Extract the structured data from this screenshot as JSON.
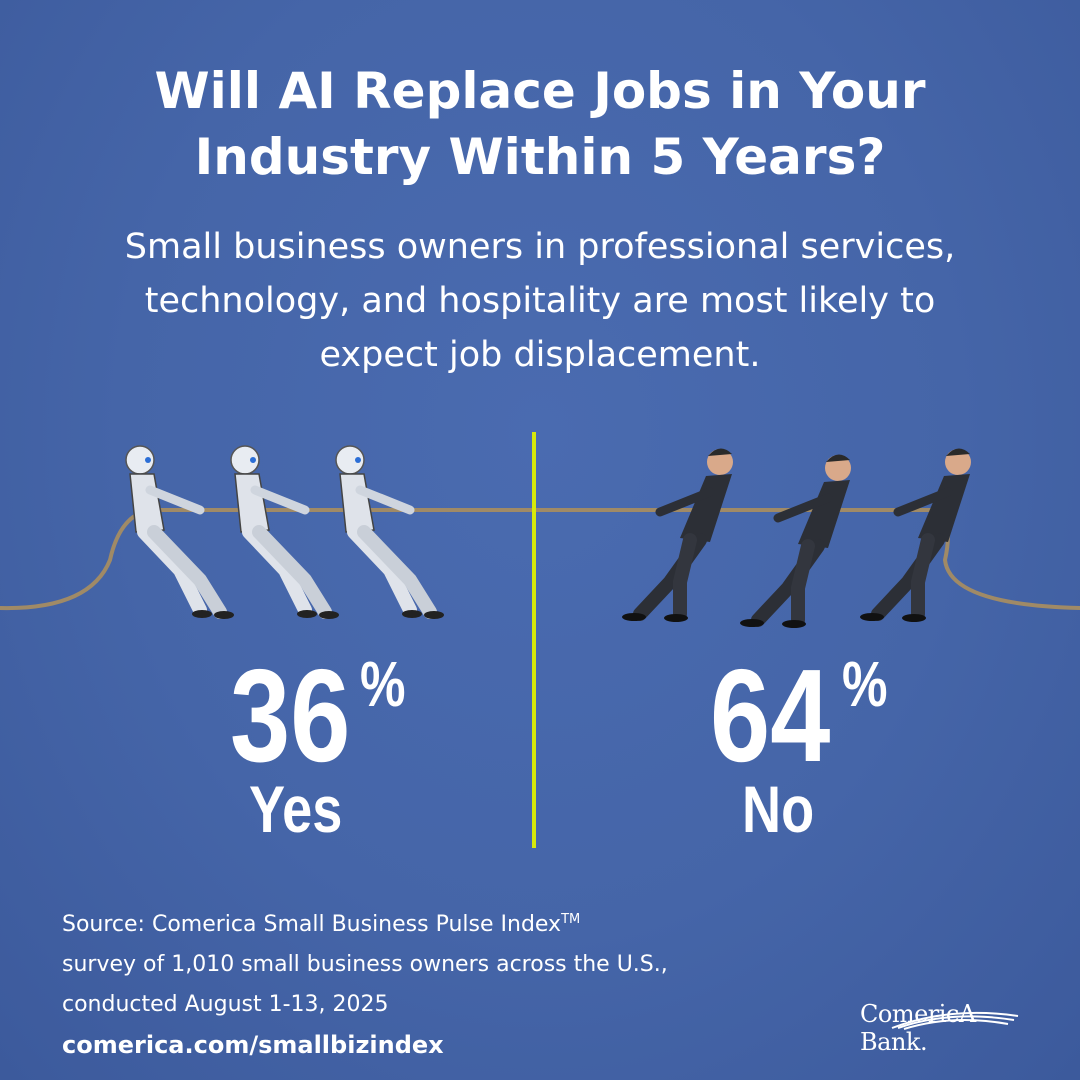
{
  "title": {
    "line1": "Will AI Replace Jobs in Your",
    "line2": "Industry Within 5 Years?"
  },
  "subtitle": {
    "line1": "Small business owners in professional services,",
    "line2": "technology, and hospitality are most likely to",
    "line3": "expect job displacement."
  },
  "results": {
    "yes": {
      "value": "36",
      "unit": "%",
      "label": "Yes"
    },
    "no": {
      "value": "64",
      "unit": "%",
      "label": "No"
    }
  },
  "source": {
    "line1": "Source: Comerica Small Business Pulse Index",
    "trademark": "TM",
    "line2": "survey of 1,010 small business owners across the U.S.,",
    "line3": "conducted August 1-13, 2025",
    "url": "comerica.com/smallbizindex"
  },
  "logo": {
    "text": "ComericA Bank."
  },
  "colors": {
    "background": "#4565a8",
    "divider": "#d6e80a"
  }
}
